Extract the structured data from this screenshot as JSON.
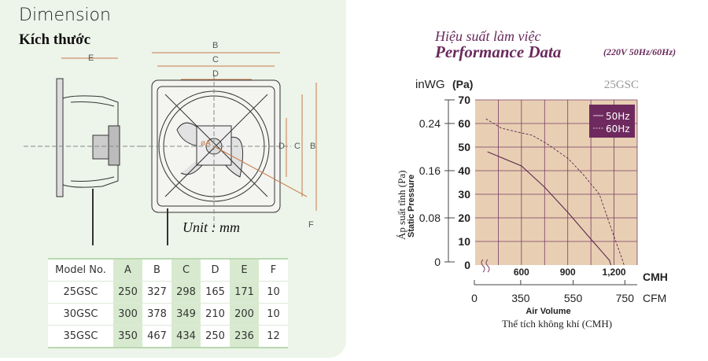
{
  "dimension": {
    "title_en": "Dimension",
    "title_vi": "Kích thước",
    "unit": "Unit : mm",
    "labels": {
      "A": "A",
      "B": "B",
      "C": "C",
      "D": "D",
      "E": "E",
      "F": "F",
      "dia": "øA"
    }
  },
  "table": {
    "headers": [
      "Model No.",
      "A",
      "B",
      "C",
      "D",
      "E",
      "F"
    ],
    "rows": [
      [
        "25GSC",
        "250",
        "327",
        "298",
        "165",
        "171",
        "10"
      ],
      [
        "30GSC",
        "300",
        "378",
        "349",
        "210",
        "200",
        "10"
      ],
      [
        "35GSC",
        "350",
        "467",
        "434",
        "250",
        "236",
        "12"
      ]
    ]
  },
  "performance": {
    "title_vi": "Hiệu suất làm việc",
    "title_en": "Performance Data",
    "spec": "(220V 50Hz/60Hz)"
  },
  "colors": {
    "plot_bg": "#e8cfb3",
    "grid": "#7a3b64",
    "legend_bg": "#6e2a5e",
    "panel": "#edf4e9",
    "highlight": "#d7eacf"
  },
  "chart_data": {
    "type": "line",
    "model": "25GSC",
    "ylabel_vi": "Áp suất tĩnh (Pa)",
    "ylabel_en": "Static Pressure",
    "y_unit_left": "inWG",
    "y_unit_right": "(Pa)",
    "ylim": [
      0,
      70
    ],
    "yticks": [
      0,
      10,
      20,
      30,
      40,
      50,
      60,
      70
    ],
    "inwg_ticks": [
      {
        "label": "0.24",
        "pa": 60
      },
      {
        "label": "0.16",
        "pa": 40
      },
      {
        "label": "0.08",
        "pa": 20
      },
      {
        "label": "0",
        "pa": 0
      }
    ],
    "xlim": [
      300,
      1350
    ],
    "x_unit": "CMH",
    "xticks": [
      600,
      900,
      1200
    ],
    "xtick_labels": [
      "600",
      "900",
      "1,200"
    ],
    "x_grid": [
      450,
      600,
      750,
      900,
      1050,
      1200
    ],
    "cfm_unit": "CFM",
    "cfm_ticks": [
      {
        "label": "0",
        "cmh": 300
      },
      {
        "label": "350",
        "cmh": 595
      },
      {
        "label": "550",
        "cmh": 935
      },
      {
        "label": "750",
        "cmh": 1270
      }
    ],
    "xlabel_en": "Air Volume",
    "xlabel_vi": "Thể tích không khí (CMH)",
    "legend_position": "top-right",
    "series": [
      {
        "name": "50Hz",
        "style": "solid",
        "x": [
          380,
          600,
          750,
          905,
          1050,
          1170,
          1180
        ],
        "y": [
          48,
          42,
          33,
          22,
          11,
          2,
          0
        ]
      },
      {
        "name": "60Hz",
        "style": "dashed",
        "x": [
          370,
          470,
          600,
          670,
          775,
          905,
          1005,
          1105,
          1195,
          1255,
          1265
        ],
        "y": [
          62,
          58,
          56,
          55,
          51,
          45,
          38,
          30,
          13,
          2,
          0
        ]
      }
    ]
  }
}
